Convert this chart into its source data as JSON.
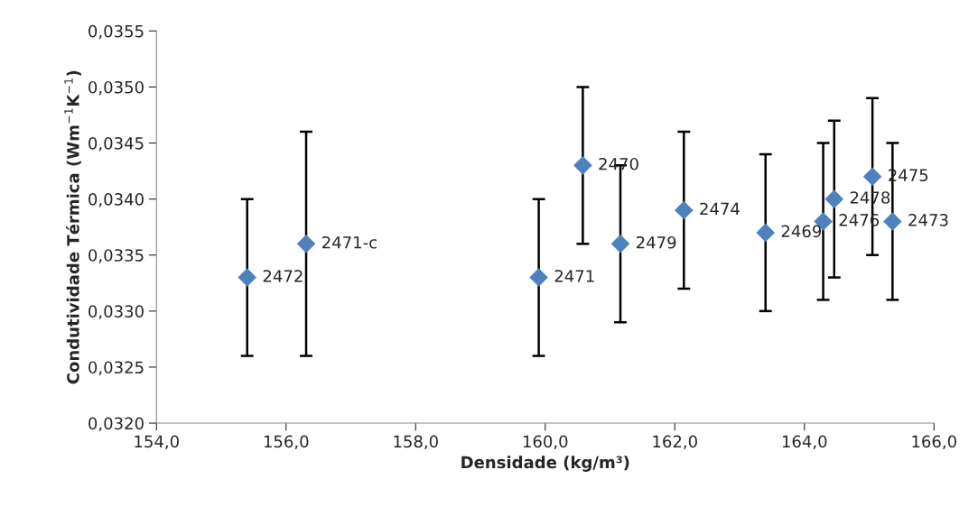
{
  "chart_data": {
    "type": "scatter",
    "xlabel": "Densidade (kg/m³)",
    "ylabel": "Condutividade Térmica (Wm$^{−1}$K$^{−1}$)",
    "x": [
      155.4,
      156.31,
      159.9,
      160.58,
      161.16,
      162.14,
      163.4,
      164.29,
      164.46,
      165.05,
      165.36
    ],
    "series": [
      {
        "color": "#4f81bd",
        "values": [
          0.0333,
          0.0336,
          0.0333,
          0.0343,
          0.0336,
          0.0339,
          0.0337,
          0.0338,
          0.034,
          0.0342,
          0.0338
        ],
        "errors": [
          0.0007,
          [
            0.0326,
            0.0346
          ],
          0.0007,
          0.0007,
          0.0007,
          0.0007,
          0.0007,
          0.0007,
          0.0007,
          0.0007,
          0.0007
        ]
      }
    ],
    "annotations": [
      {
        "text": "2472",
        "x": 155.4,
        "y": 0.0333
      },
      {
        "text": "2471-c",
        "x": 156.31,
        "y": 0.0336
      },
      {
        "text": "2471",
        "x": 159.9,
        "y": 0.0333
      },
      {
        "text": "2470",
        "x": 160.58,
        "y": 0.0343
      },
      {
        "text": "2479",
        "x": 161.16,
        "y": 0.0336
      },
      {
        "text": "2474",
        "x": 162.14,
        "y": 0.0339
      },
      {
        "text": "2469",
        "x": 163.4,
        "y": 0.0337
      },
      {
        "text": "2476",
        "x": 164.29,
        "y": 0.0338
      },
      {
        "text": "2478",
        "x": 164.46,
        "y": 0.034
      },
      {
        "text": "2475",
        "x": 165.05,
        "y": 0.0342
      },
      {
        "text": "2473",
        "x": 165.36,
        "y": 0.0338
      }
    ],
    "xlim": [
      154,
      166
    ],
    "xticks": [
      {
        "value": 154,
        "label": "154,0"
      },
      {
        "value": 156,
        "label": "156,0"
      },
      {
        "value": 158,
        "label": "158,0"
      },
      {
        "value": 160,
        "label": "160,0"
      },
      {
        "value": 162,
        "label": "162,0"
      },
      {
        "value": 164,
        "label": "164,0"
      },
      {
        "value": 166,
        "label": "166,0"
      }
    ],
    "ylim": [
      0.032,
      0.0355
    ],
    "yticks": [
      {
        "value": 0.032,
        "label": "0,0320"
      },
      {
        "value": 0.0325,
        "label": "0,0325"
      },
      {
        "value": 0.033,
        "label": "0,0330"
      },
      {
        "value": 0.0335,
        "label": "0,0335"
      },
      {
        "value": 0.034,
        "label": "0,0340"
      },
      {
        "value": 0.0345,
        "label": "0,0345"
      },
      {
        "value": 0.035,
        "label": "0,0350"
      },
      {
        "value": 0.0355,
        "label": "0,0355"
      }
    ],
    "marker": "diamond",
    "grid": false,
    "legend": false
  }
}
